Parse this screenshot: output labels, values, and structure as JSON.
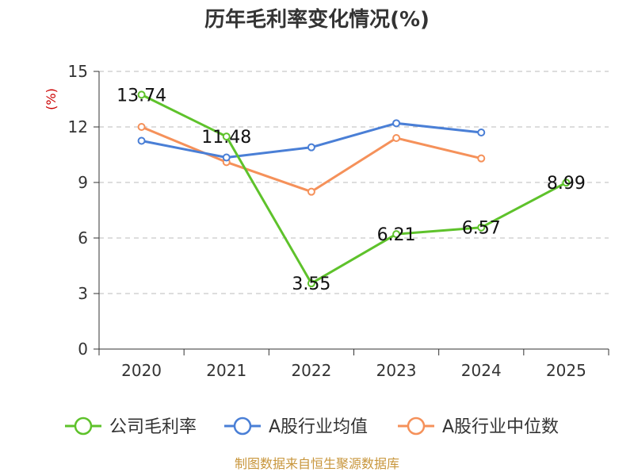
{
  "colors": {
    "background": "#ffffff",
    "grid": "#bbbbbb",
    "axis": "#333333",
    "unit_label": "#cc0000",
    "source": "#c8963c"
  },
  "chart_data": {
    "type": "line",
    "title": "历年毛利率变化情况(%)",
    "ylabel": "(%)",
    "xlabel": "",
    "categories": [
      "2020",
      "2021",
      "2022",
      "2023",
      "2024",
      "2025"
    ],
    "ylim": [
      0,
      15
    ],
    "yticks": [
      "0",
      "3",
      "6",
      "9",
      "12",
      "15"
    ],
    "grid": true,
    "legend_position": "bottom",
    "series": [
      {
        "name": "公司毛利率",
        "color": "#5ec22b",
        "values": [
          13.74,
          11.48,
          3.55,
          6.21,
          6.57,
          8.99
        ],
        "labels": [
          "13.74",
          "11.48",
          "3.55",
          "6.21",
          "6.57",
          "8.99"
        ],
        "show_labels": true
      },
      {
        "name": "A股行业均值",
        "color": "#4a7fd6",
        "values": [
          11.25,
          10.35,
          10.9,
          12.2,
          11.7,
          null
        ],
        "show_labels": false
      },
      {
        "name": "A股行业中位数",
        "color": "#f5915a",
        "values": [
          12.0,
          10.1,
          8.5,
          11.4,
          10.3,
          null
        ],
        "show_labels": false
      }
    ]
  },
  "source_text": "制图数据来自恒生聚源数据库"
}
